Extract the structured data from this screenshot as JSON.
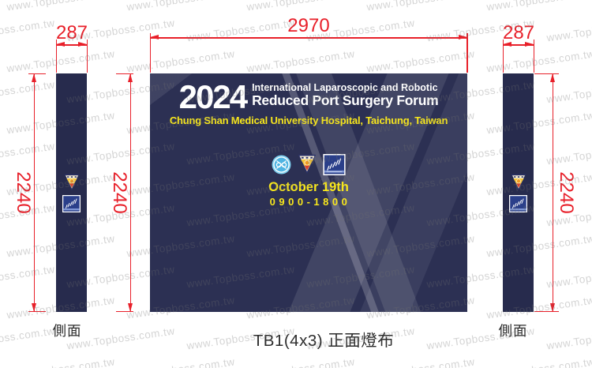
{
  "watermark": {
    "text": "www.Topboss.com.tw"
  },
  "annotations": {
    "color": "#e8202a",
    "top_width": "2970",
    "left_panel_width": "287",
    "right_panel_width": "287",
    "left_panel_height": "2240",
    "main_height": "2240",
    "right_panel_height": "2240"
  },
  "captions": {
    "left_panel": "側面",
    "front_panel": "TB1(4x3) 正面燈布",
    "right_panel": "側面"
  },
  "banner": {
    "year": "2024",
    "title_line1": "International Laparoscopic and Robotic",
    "title_line2": "Reduced Port Surgery Forum",
    "subtitle": "Chung Shan Medical University Hospital, Taichung, Taiwan",
    "date": "October 19th",
    "time": "0900-1800",
    "colors": {
      "background": "#2c3053",
      "side_panel": "#272b4d",
      "yellow": "#f8e71c",
      "white": "#ffffff"
    },
    "logos": [
      "laparoscopic-society-logo",
      "csmu-shield-logo",
      "csmu-hospital-logo"
    ]
  }
}
